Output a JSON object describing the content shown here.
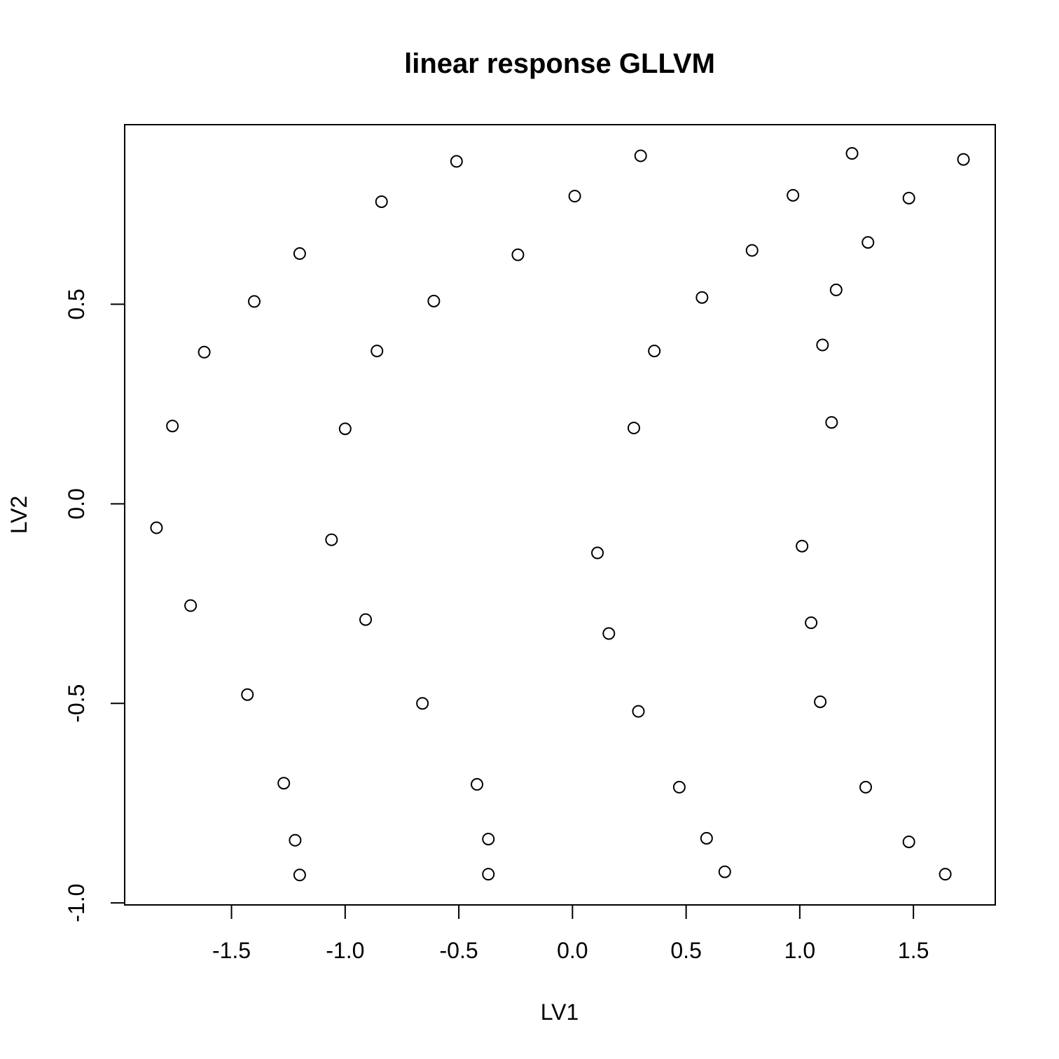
{
  "chart_data": {
    "type": "scatter",
    "title": "linear response GLLVM",
    "xlabel": "LV1",
    "ylabel": "LV2",
    "xlim": [
      -1.97,
      1.86
    ],
    "ylim": [
      -1.005,
      0.95
    ],
    "x_ticks": [
      {
        "value": -1.5,
        "label": "-1.5"
      },
      {
        "value": -1.0,
        "label": "-1.0"
      },
      {
        "value": -0.5,
        "label": "-0.5"
      },
      {
        "value": 0.0,
        "label": "0.0"
      },
      {
        "value": 0.5,
        "label": "0.5"
      },
      {
        "value": 1.0,
        "label": "1.0"
      },
      {
        "value": 1.5,
        "label": "1.5"
      }
    ],
    "y_ticks": [
      {
        "value": -1.0,
        "label": "-1.0"
      },
      {
        "value": -0.5,
        "label": "-0.5"
      },
      {
        "value": 0.0,
        "label": "0.0"
      },
      {
        "value": 0.5,
        "label": "0.5"
      }
    ],
    "grid": false,
    "marker": "open-circle",
    "points": [
      {
        "x": -1.83,
        "y": -0.06
      },
      {
        "x": -1.76,
        "y": 0.195
      },
      {
        "x": -1.68,
        "y": -0.255
      },
      {
        "x": -1.62,
        "y": 0.38
      },
      {
        "x": -1.43,
        "y": -0.478
      },
      {
        "x": -1.4,
        "y": 0.507
      },
      {
        "x": -1.27,
        "y": -0.7
      },
      {
        "x": -1.22,
        "y": -0.843
      },
      {
        "x": -1.2,
        "y": -0.93
      },
      {
        "x": -1.2,
        "y": 0.627
      },
      {
        "x": -1.06,
        "y": -0.09
      },
      {
        "x": -1.0,
        "y": 0.188
      },
      {
        "x": -0.91,
        "y": -0.29
      },
      {
        "x": -0.86,
        "y": 0.383
      },
      {
        "x": -0.84,
        "y": 0.757
      },
      {
        "x": -0.66,
        "y": -0.5
      },
      {
        "x": -0.61,
        "y": 0.508
      },
      {
        "x": -0.51,
        "y": 0.858
      },
      {
        "x": -0.42,
        "y": -0.703
      },
      {
        "x": -0.37,
        "y": -0.84
      },
      {
        "x": -0.37,
        "y": -0.928
      },
      {
        "x": -0.24,
        "y": 0.624
      },
      {
        "x": 0.01,
        "y": 0.771
      },
      {
        "x": 0.11,
        "y": -0.123
      },
      {
        "x": 0.16,
        "y": -0.325
      },
      {
        "x": 0.27,
        "y": 0.19
      },
      {
        "x": 0.29,
        "y": -0.52
      },
      {
        "x": 0.3,
        "y": 0.872
      },
      {
        "x": 0.36,
        "y": 0.383
      },
      {
        "x": 0.47,
        "y": -0.71
      },
      {
        "x": 0.57,
        "y": 0.517
      },
      {
        "x": 0.59,
        "y": -0.838
      },
      {
        "x": 0.67,
        "y": -0.922
      },
      {
        "x": 0.79,
        "y": 0.635
      },
      {
        "x": 0.97,
        "y": 0.773
      },
      {
        "x": 1.01,
        "y": -0.106
      },
      {
        "x": 1.05,
        "y": -0.298
      },
      {
        "x": 1.09,
        "y": -0.496
      },
      {
        "x": 1.1,
        "y": 0.398
      },
      {
        "x": 1.14,
        "y": 0.204
      },
      {
        "x": 1.16,
        "y": 0.536
      },
      {
        "x": 1.23,
        "y": 0.878
      },
      {
        "x": 1.29,
        "y": -0.71
      },
      {
        "x": 1.3,
        "y": 0.655
      },
      {
        "x": 1.48,
        "y": -0.847
      },
      {
        "x": 1.48,
        "y": 0.766
      },
      {
        "x": 1.64,
        "y": -0.928
      },
      {
        "x": 1.72,
        "y": 0.863
      }
    ]
  }
}
